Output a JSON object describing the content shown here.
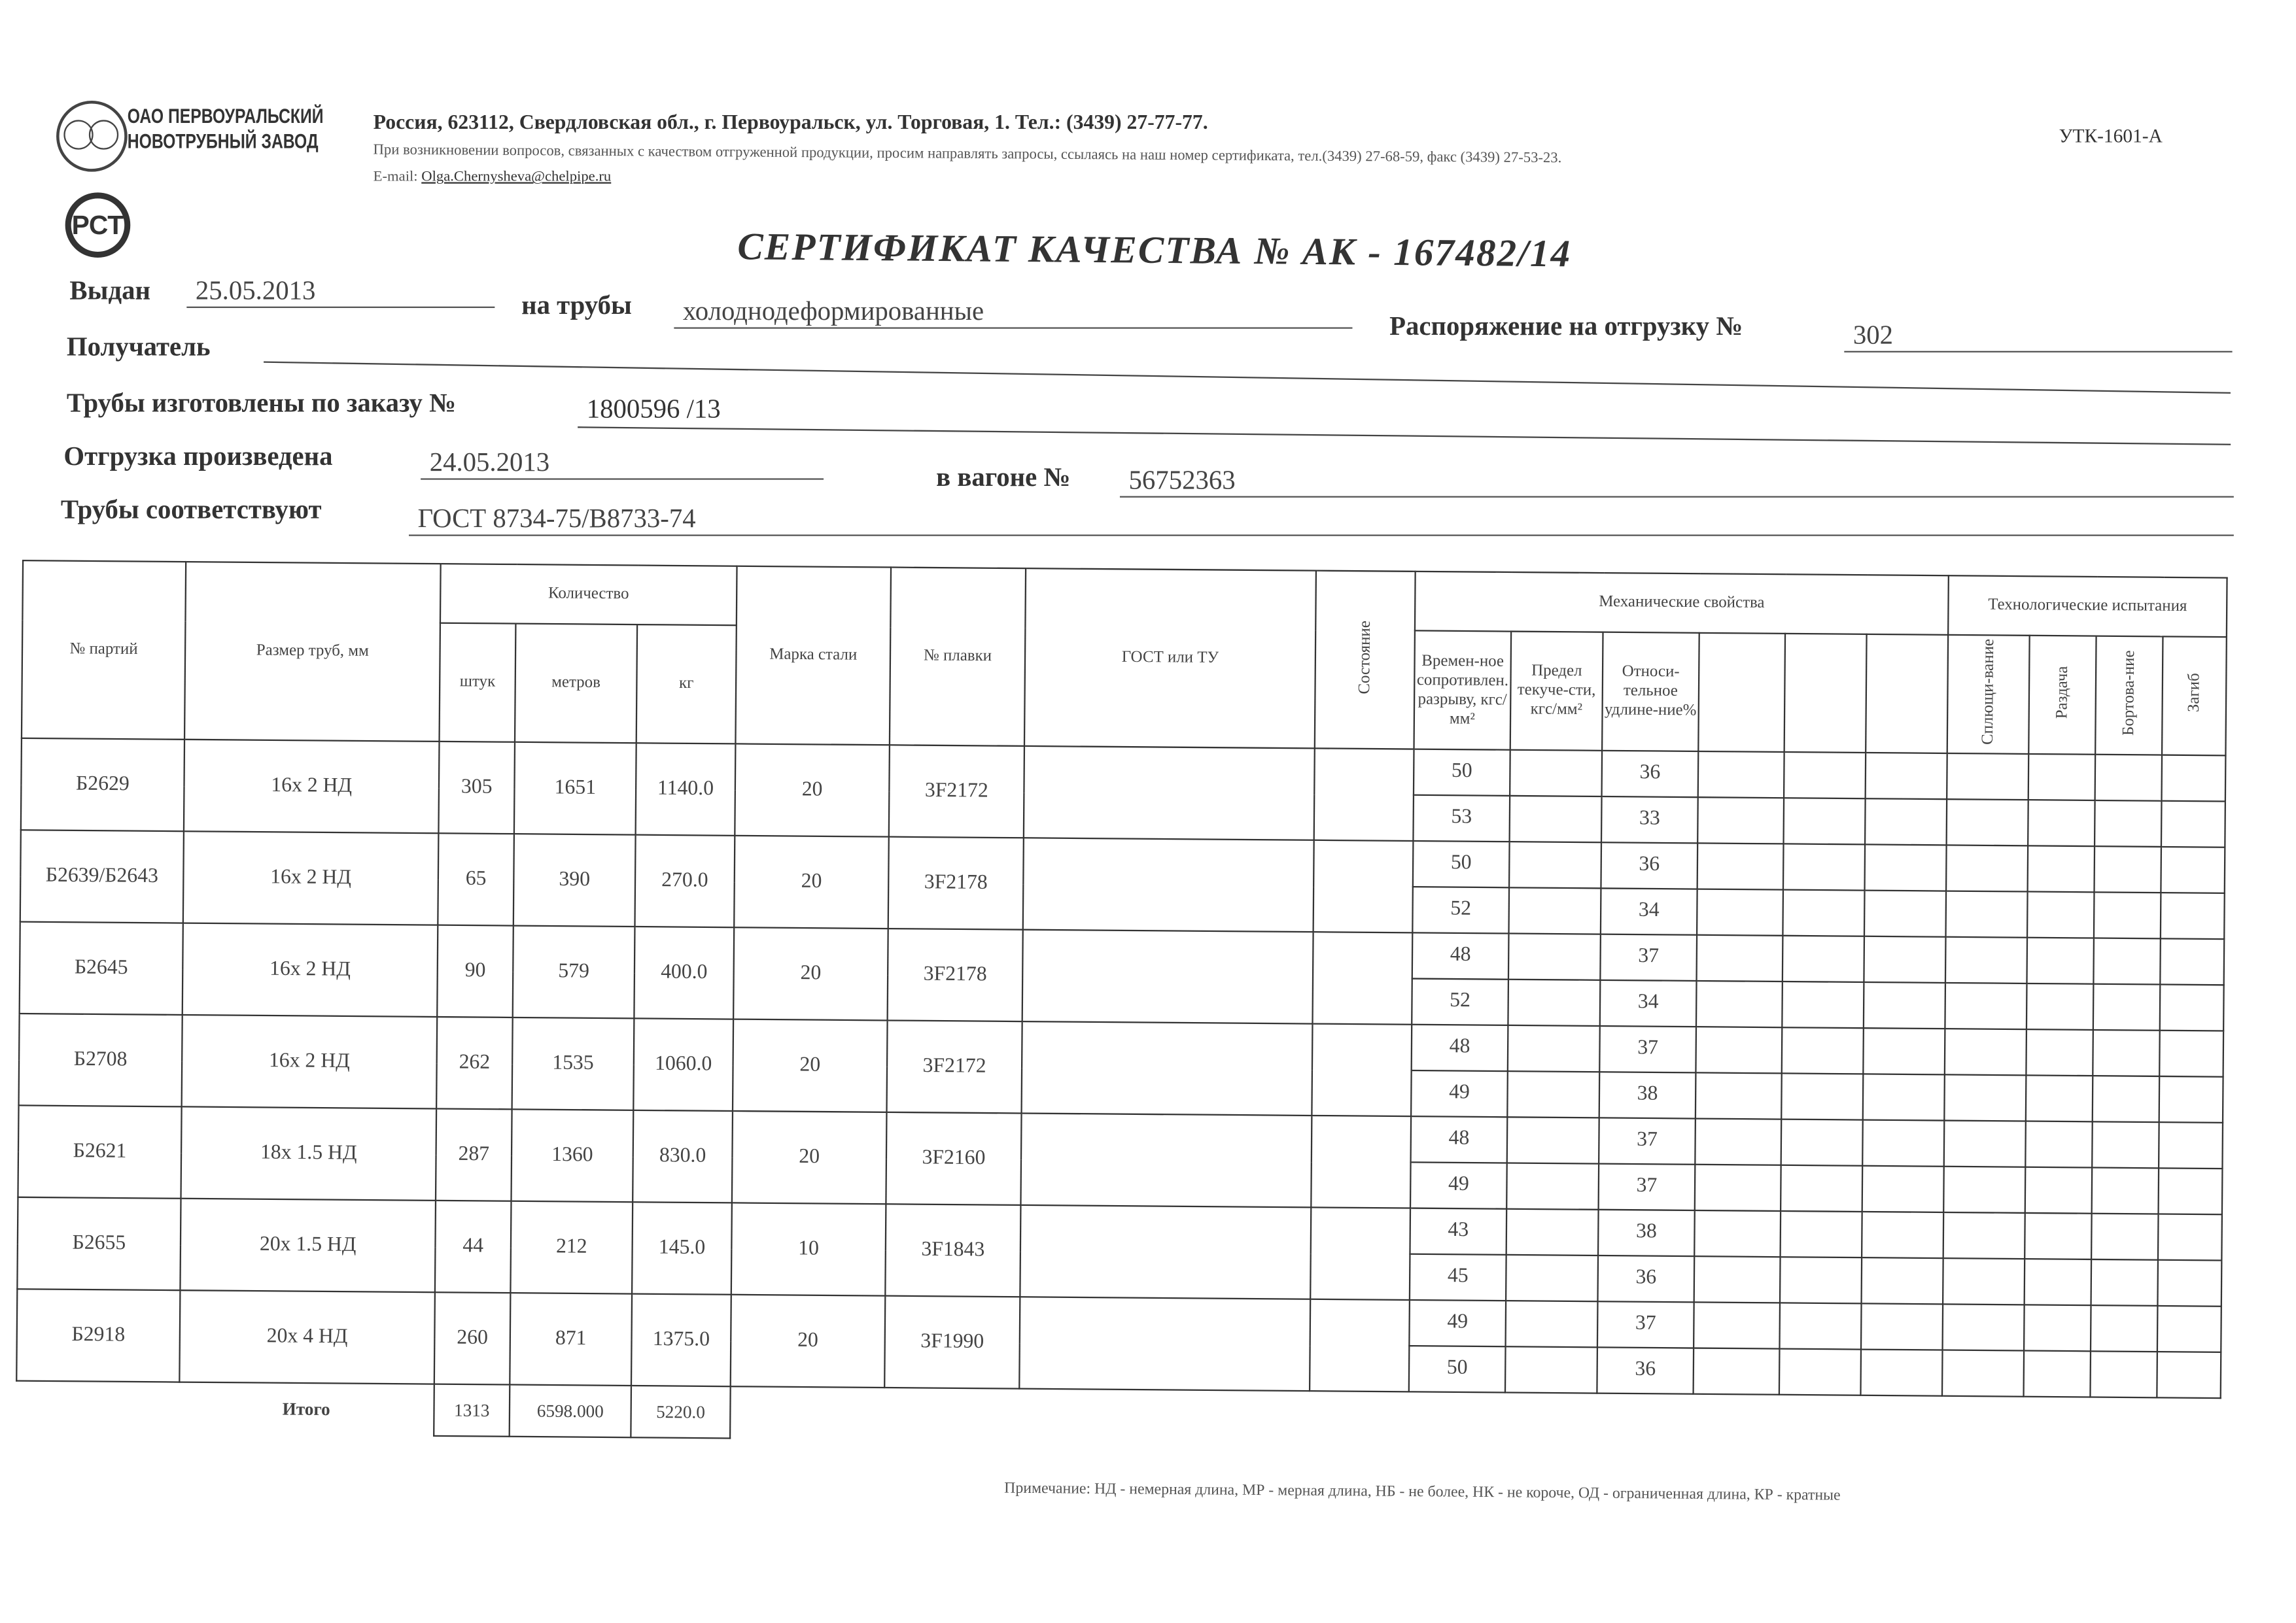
{
  "header": {
    "company_line1": "ОАО ПЕРВОУРАЛЬСКИЙ",
    "company_line2": "НОВОТРУБНЫЙ ЗАВОД",
    "address": "Россия, 623112, Свердловская обл., г. Первоуральск, ул. Торговая, 1. Тел.: (3439) 27-77-77.",
    "note": "При возникновении вопросов, связанных с качеством отгруженной продукции, просим направлять запросы, ссылаясь на наш номер сертификата, тел.(3439) 27-68-59, факс (3439) 27-53-23.",
    "email_label": "E-mail:",
    "email": "Olga.Chernysheva@chelpipe.ru",
    "form_code": "УТК-1601-А",
    "cert_mark": "РСТ"
  },
  "title": "СЕРТИФИКАТ КАЧЕСТВА   №  АК -  167482/14",
  "fields": {
    "issued_label": "Выдан",
    "issued": "25.05.2013",
    "pipes_label": "на трубы",
    "pipes": "холоднодеформированные",
    "order_label": "Распоряжение на отгрузку №",
    "order": "302",
    "recipient_label": "Получатель",
    "recipient": "",
    "made_label": "Трубы изготовлены по заказу №",
    "made": "1800596   /13",
    "shipped_label": "Отгрузка произведена",
    "shipped": "24.05.2013",
    "wagon_label": "в вагоне №",
    "wagon": "56752363",
    "conform_label": "Трубы соответствуют",
    "conform": "ГОСТ 8734-75/В8733-74"
  },
  "table": {
    "headers": {
      "lot": "№ партий",
      "size": "Размер труб, мм",
      "qty": "Количество",
      "pcs": "штук",
      "meters": "метров",
      "kg": "кг",
      "steel": "Марка стали",
      "heat": "№ плавки",
      "gost": "ГОСТ или ТУ",
      "state": "Состояние",
      "mech": "Механические свойства",
      "tensile": "Времен-ное сопротивлен. разрыву, кгс/мм²",
      "yield": "Предел текуче-сти, кгс/мм²",
      "elong": "Относи-тельное удлине-ние%",
      "tech": "Технологические испытания",
      "flatten": "Сплющи-вание",
      "expand": "Раздача",
      "flange": "Бортова-ние",
      "bend": "Загиб"
    },
    "rows": [
      {
        "lot": "Б2629",
        "size": "16х 2 НД",
        "pcs": "305",
        "m": "1651",
        "kg": "1140.0",
        "steel": "20",
        "heat": "3F2172"
      },
      {
        "lot": "Б2639/Б2643",
        "size": "16х 2 НД",
        "pcs": "65",
        "m": "390",
        "kg": "270.0",
        "steel": "20",
        "heat": "3F2178"
      },
      {
        "lot": "Б2645",
        "size": "16х 2 НД",
        "pcs": "90",
        "m": "579",
        "kg": "400.0",
        "steel": "20",
        "heat": "3F2178"
      },
      {
        "lot": "Б2708",
        "size": "16х 2 НД",
        "pcs": "262",
        "m": "1535",
        "kg": "1060.0",
        "steel": "20",
        "heat": "3F2172"
      },
      {
        "lot": "Б2621",
        "size": "18х 1.5 НД",
        "pcs": "287",
        "m": "1360",
        "kg": "830.0",
        "steel": "20",
        "heat": "3F2160"
      },
      {
        "lot": "Б2655",
        "size": "20х 1.5 НД",
        "pcs": "44",
        "m": "212",
        "kg": "145.0",
        "steel": "10",
        "heat": "3F1843"
      },
      {
        "lot": "Б2918",
        "size": "20х 4 НД",
        "pcs": "260",
        "m": "871",
        "kg": "1375.0",
        "steel": "20",
        "heat": "3F1990"
      }
    ],
    "mech": [
      [
        "50",
        "36"
      ],
      [
        "53",
        "33"
      ],
      [
        "50",
        "36"
      ],
      [
        "52",
        "34"
      ],
      [
        "48",
        "37"
      ],
      [
        "52",
        "34"
      ],
      [
        "48",
        "37"
      ],
      [
        "49",
        "38"
      ],
      [
        "48",
        "37"
      ],
      [
        "49",
        "37"
      ],
      [
        "43",
        "38"
      ],
      [
        "45",
        "36"
      ],
      [
        "49",
        "37"
      ],
      [
        "50",
        "36"
      ]
    ],
    "total": {
      "label": "Итого",
      "pcs": "1313",
      "m": "6598.000",
      "kg": "5220.0"
    }
  },
  "footnote": "Примечание: НД - немерная длина, МР - мерная длина, НБ - не более, НК - не короче, ОД - ограниченная длина, КР - кратные"
}
